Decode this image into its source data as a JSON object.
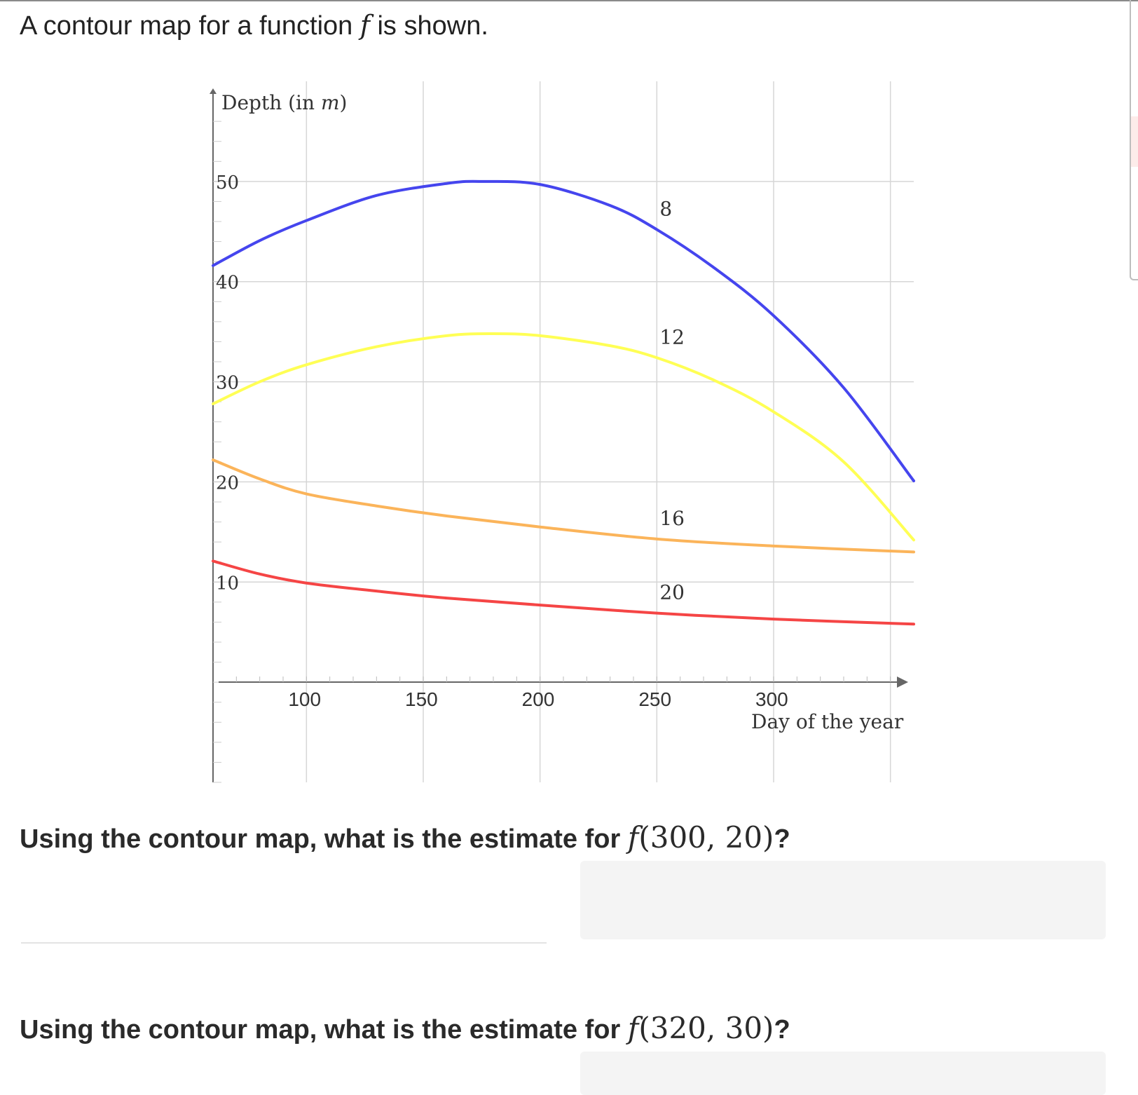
{
  "intro": {
    "prefix": "A contour map for a function ",
    "func": "f",
    "suffix": " is shown."
  },
  "chart_data": {
    "type": "line",
    "title": "",
    "xlabel": "Day of the year",
    "ylabel_text": "Depth (in ",
    "ylabel_var": "m",
    "ylabel_close": ")",
    "xlim": [
      60,
      360
    ],
    "ylim": [
      -10,
      60
    ],
    "x_ticks": [
      "100",
      "150",
      "200",
      "250",
      "300"
    ],
    "y_ticks": [
      "10",
      "20",
      "30",
      "40",
      "50"
    ],
    "grid": true,
    "series": [
      {
        "name": "8",
        "color": "#4545ee",
        "x": [
          60,
          80,
          100,
          130,
          160,
          175,
          200,
          230,
          250,
          275,
          300,
          330,
          360
        ],
        "y": [
          41.6,
          44.1,
          46.1,
          48.6,
          49.8,
          50.0,
          49.7,
          47.6,
          45.2,
          41.3,
          36.6,
          29.4,
          20.1
        ]
      },
      {
        "name": "12",
        "color": "#ffff55",
        "x": [
          60,
          80,
          100,
          130,
          160,
          180,
          200,
          230,
          250,
          275,
          300,
          330,
          360
        ],
        "y": [
          27.8,
          30.0,
          31.7,
          33.5,
          34.6,
          34.8,
          34.6,
          33.6,
          32.4,
          30.1,
          27.0,
          22.0,
          14.2
        ]
      },
      {
        "name": "16",
        "color": "#fbb45a",
        "x": [
          60,
          80,
          100,
          130,
          160,
          200,
          250,
          300,
          360
        ],
        "y": [
          22.2,
          20.3,
          18.8,
          17.6,
          16.6,
          15.5,
          14.3,
          13.6,
          13.0
        ]
      },
      {
        "name": "20",
        "color": "#f54545",
        "x": [
          60,
          80,
          100,
          130,
          160,
          200,
          250,
          300,
          360
        ],
        "y": [
          12.1,
          10.8,
          9.9,
          9.1,
          8.4,
          7.7,
          6.9,
          6.3,
          5.8
        ]
      }
    ]
  },
  "questions": [
    {
      "prefix": "Using the contour map, what is the estimate for ",
      "func": "f",
      "args": "(300, 20)",
      "suffix": "?",
      "answer": ""
    },
    {
      "prefix": "Using the contour map, what is the estimate for ",
      "func": "f",
      "args": "(320, 30)",
      "suffix": "?",
      "answer": ""
    }
  ]
}
